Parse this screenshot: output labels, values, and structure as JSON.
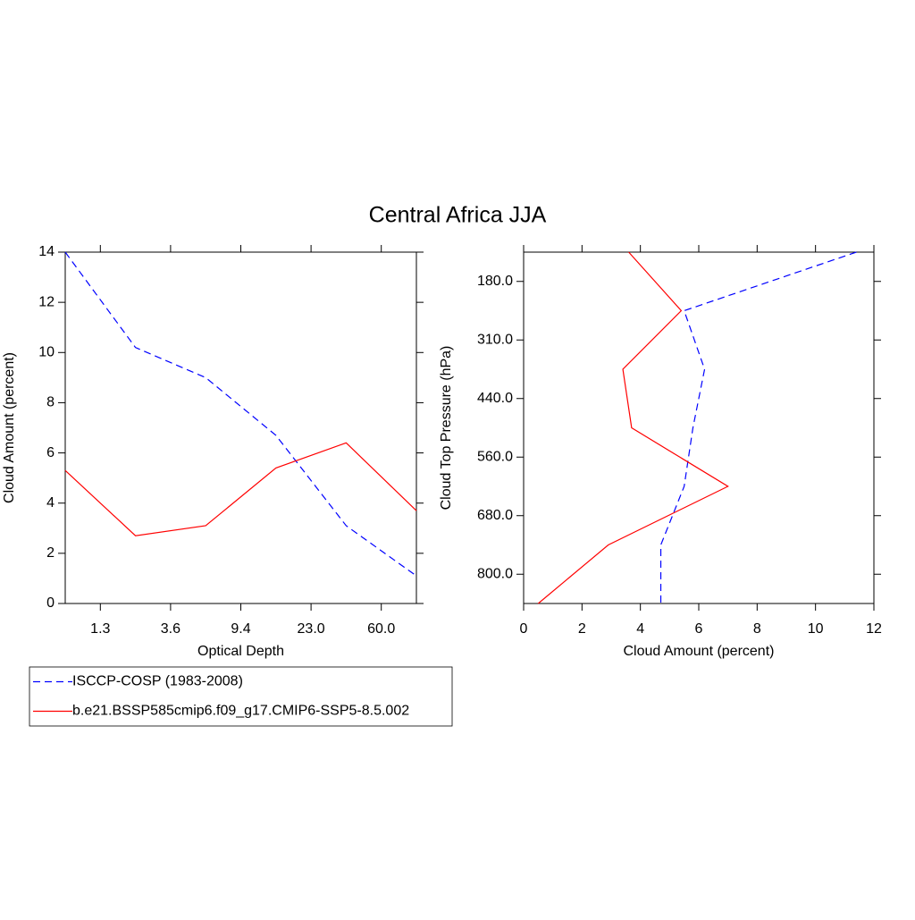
{
  "chart_data": [
    {
      "type": "line",
      "title": "Central Africa JJA",
      "xlabel": "Optical Depth",
      "ylabel": "Cloud Amount (percent)",
      "x": [
        0,
        1,
        2,
        3,
        4,
        5
      ],
      "xlim": [
        0,
        5
      ],
      "ylim": [
        0,
        14
      ],
      "xticks": [
        {
          "value": 0.5,
          "label": "1.3"
        },
        {
          "value": 1.5,
          "label": "3.6"
        },
        {
          "value": 2.5,
          "label": "9.4"
        },
        {
          "value": 3.5,
          "label": "23.0"
        },
        {
          "value": 4.5,
          "label": "60.0"
        }
      ],
      "yticks": [
        0,
        2,
        4,
        6,
        8,
        10,
        12,
        14
      ],
      "legend": "bottom-left",
      "series": [
        {
          "name": "ISCCP-COSP (1983-2008)",
          "color": "#0000ff",
          "dashed": true,
          "values": [
            14.0,
            10.2,
            9.0,
            6.7,
            3.1,
            1.1
          ]
        },
        {
          "name": "b.e21.BSSP585cmip6.f09_g17.CMIP6-SSP5-8.5.002",
          "color": "#ff0000",
          "dashed": false,
          "values": [
            5.3,
            2.7,
            3.1,
            5.4,
            6.4,
            3.7
          ]
        }
      ]
    },
    {
      "type": "line",
      "orientation": "horizontal",
      "xlabel": "Cloud Amount (percent)",
      "ylabel": "Cloud Top Pressure (hPa)",
      "y": [
        0,
        1,
        2,
        3,
        4,
        5,
        6
      ],
      "xlim": [
        0,
        12
      ],
      "ylim": [
        6,
        0
      ],
      "xticks": [
        0,
        2,
        4,
        6,
        8,
        10,
        12
      ],
      "yticks": [
        {
          "value": 0.5,
          "label": "180.0"
        },
        {
          "value": 1.5,
          "label": "310.0"
        },
        {
          "value": 2.5,
          "label": "440.0"
        },
        {
          "value": 3.5,
          "label": "560.0"
        },
        {
          "value": 4.5,
          "label": "680.0"
        },
        {
          "value": 5.5,
          "label": "800.0"
        }
      ],
      "series": [
        {
          "color": "#0000ff",
          "dashed": true,
          "values": [
            11.4,
            5.5,
            6.2,
            5.8,
            5.5,
            4.7,
            4.7
          ]
        },
        {
          "color": "#ff0000",
          "dashed": false,
          "values": [
            3.6,
            5.4,
            3.4,
            3.7,
            7.0,
            2.9,
            0.5
          ]
        }
      ]
    }
  ]
}
